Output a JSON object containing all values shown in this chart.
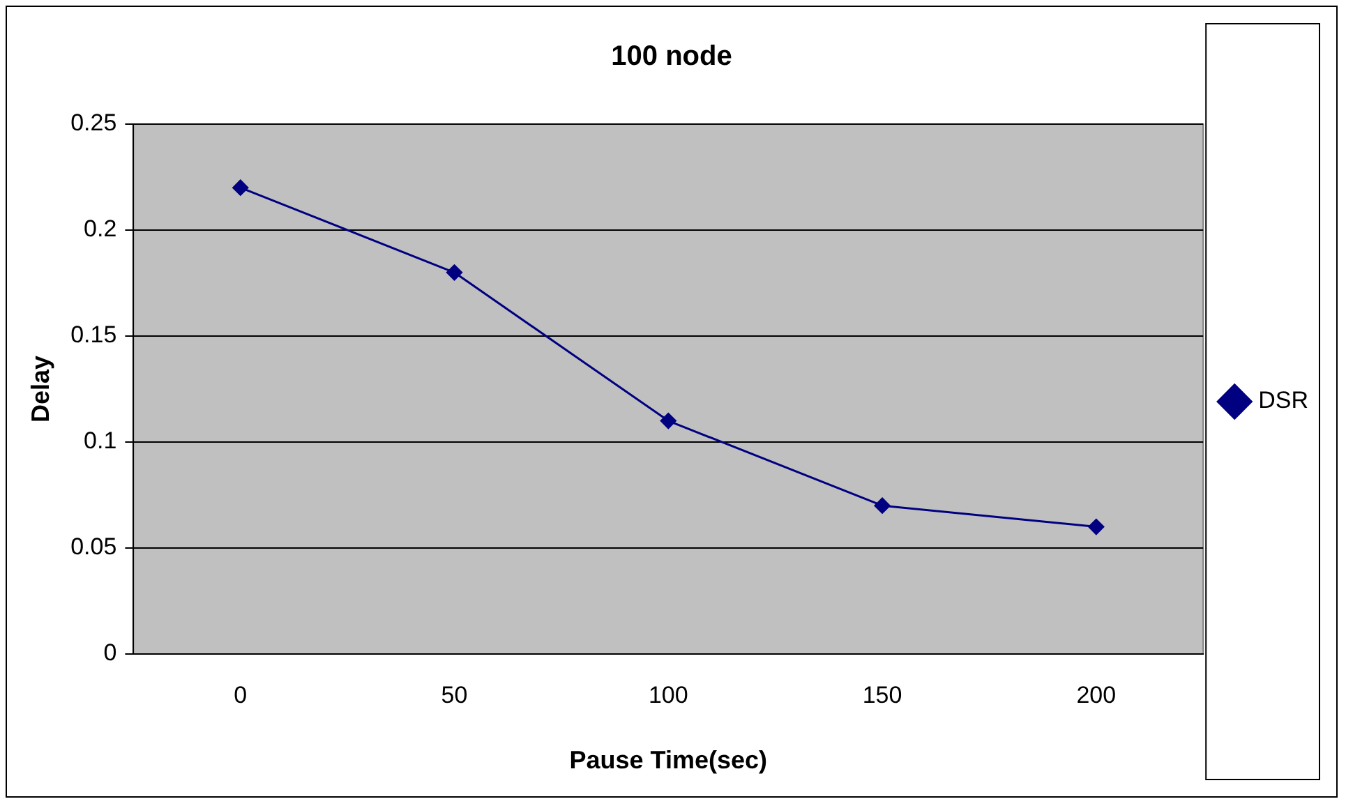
{
  "chart_data": {
    "type": "line",
    "title": "100 node",
    "xlabel": "Pause Time(sec)",
    "ylabel": "Delay",
    "categories": [
      "0",
      "50",
      "100",
      "150",
      "200"
    ],
    "series": [
      {
        "name": "DSR",
        "color": "#000080",
        "values": [
          0.22,
          0.18,
          0.11,
          0.07,
          0.06
        ]
      }
    ],
    "ylim": [
      0,
      0.25
    ],
    "yticks": [
      0,
      0.05,
      0.1,
      0.15,
      0.2,
      0.25
    ],
    "grid": "y",
    "legend": "right",
    "marker": "diamond",
    "line_style": "solid"
  }
}
